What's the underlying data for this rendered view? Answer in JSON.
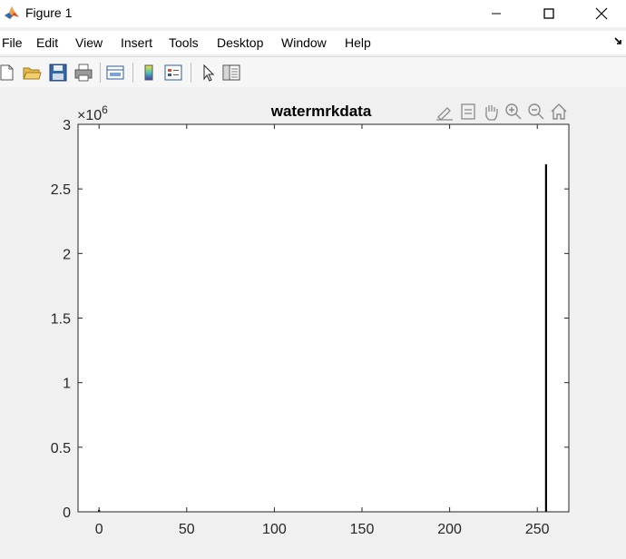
{
  "window": {
    "title": "Figure 1",
    "controls": [
      "minimize",
      "maximize",
      "close"
    ]
  },
  "menubar": {
    "items": [
      "File",
      "Edit",
      "View",
      "Insert",
      "Tools",
      "Desktop",
      "Window",
      "Help"
    ]
  },
  "toolbar": {
    "buttons": [
      "new-figure-icon",
      "open-file-icon",
      "save-icon",
      "print-icon",
      "link-plot-icon",
      "colorbar-icon",
      "legend-icon",
      "pointer-icon",
      "property-inspector-icon"
    ]
  },
  "axes_toolbar": {
    "buttons": [
      "brush-icon",
      "data-tips-icon",
      "pan-icon",
      "zoom-in-icon",
      "zoom-out-icon",
      "home-icon"
    ]
  },
  "colors": {
    "background": "#f0f0f0",
    "axes_bg": "#ffffff",
    "bars": "#000000"
  },
  "chart_data": {
    "type": "bar",
    "title": "watermrkdata",
    "xlabel": "",
    "ylabel": "",
    "exponent_label": "×10",
    "exponent_power": "6",
    "xlim": [
      -12,
      268
    ],
    "ylim": [
      0,
      3000000
    ],
    "x_ticks": [
      0,
      50,
      100,
      150,
      200,
      250
    ],
    "x_tick_labels": [
      "0",
      "50",
      "100",
      "150",
      "200",
      "250"
    ],
    "y_ticks": [
      0,
      500000,
      1000000,
      1500000,
      2000000,
      2500000,
      3000000
    ],
    "y_tick_labels": [
      "0",
      "0.5",
      "1",
      "1.5",
      "2",
      "2.5",
      "3"
    ],
    "bars": [
      {
        "x": 0,
        "value": 15000
      },
      {
        "x": 255,
        "value": 2690000
      }
    ]
  }
}
